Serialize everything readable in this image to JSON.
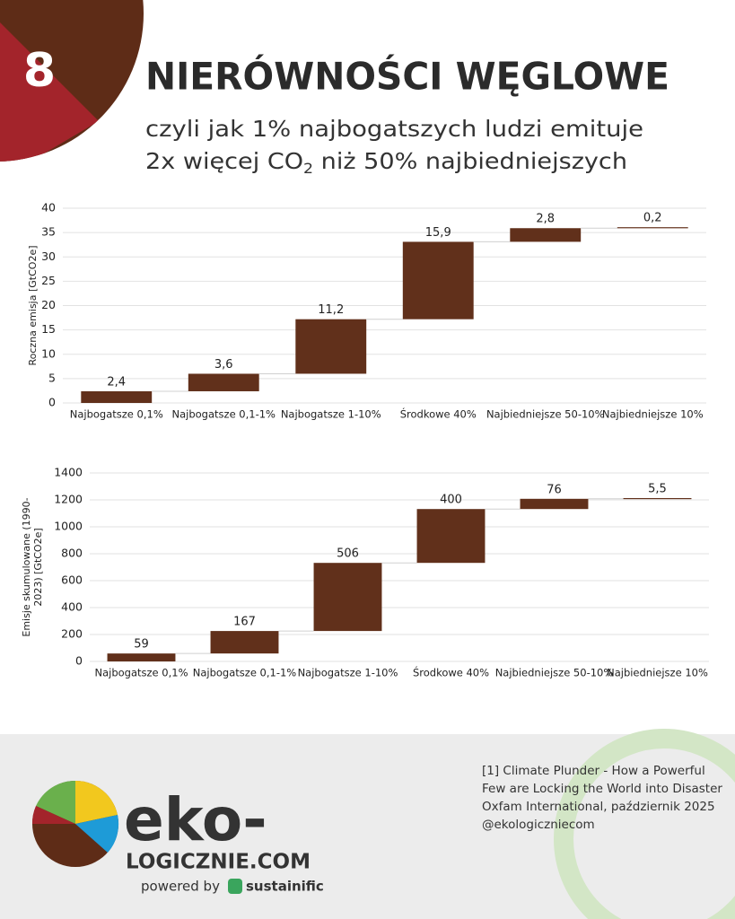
{
  "header": {
    "number": "8",
    "title": "NIERÓWNOŚCI WĘGLOWE",
    "subtitle_line1": "czyli jak 1% najbogatszych ludzi emituje",
    "subtitle_line2": {
      "before": "2x więcej CO",
      "subscript": "2",
      "after": " niż 50% najbiedniejszych"
    }
  },
  "chart_data": [
    {
      "type": "waterfall",
      "y_label": [
        "Roczna emisja [GtCO2e]"
      ],
      "categories": [
        "Najbogatsze 0,1%",
        "Najbogatsze 0,1-1%",
        "Najbogatsze 1-10%",
        "Środkowe 40%",
        "Najbiedniejsze 50-10%",
        "Najbiedniejsze 10%"
      ],
      "values": [
        2.4,
        3.6,
        11.2,
        15.9,
        2.8,
        0.2
      ],
      "value_labels": [
        "2,4",
        "3,6",
        "11,2",
        "15,9",
        "2,8",
        "0,2"
      ],
      "color": "#61301b",
      "ylim": [
        0,
        40
      ],
      "yticks": [
        0,
        5,
        10,
        15,
        20,
        25,
        30,
        35,
        40
      ],
      "grid": true
    },
    {
      "type": "waterfall",
      "y_label": [
        "Emisje skumulowane (1990-",
        "2023) [GtCO2e]"
      ],
      "categories": [
        "Najbogatsze 0,1%",
        "Najbogatsze 0,1-1%",
        "Najbogatsze 1-10%",
        "Środkowe 40%",
        "Najbiedniejsze 50-10%",
        "Najbiedniejsze 10%"
      ],
      "values": [
        59,
        167,
        506,
        400,
        76,
        5.5
      ],
      "value_labels": [
        "59",
        "167",
        "506",
        "400",
        "76",
        "5,5"
      ],
      "color": "#61301b",
      "ylim": [
        0,
        1400
      ],
      "yticks": [
        0,
        200,
        400,
        600,
        800,
        1000,
        1200,
        1400
      ],
      "grid": true
    }
  ],
  "footer": {
    "source": [
      "[1] Climate Plunder - How a Powerful",
      "Few are Locking the World into Disaster",
      "Oxfam International, październik 2025",
      "@ekologiczniecom"
    ],
    "logo_main": "eko-",
    "logo_sub": "LOGICZNIE.COM",
    "powered_by": "powered by",
    "partner": "sustainific"
  }
}
